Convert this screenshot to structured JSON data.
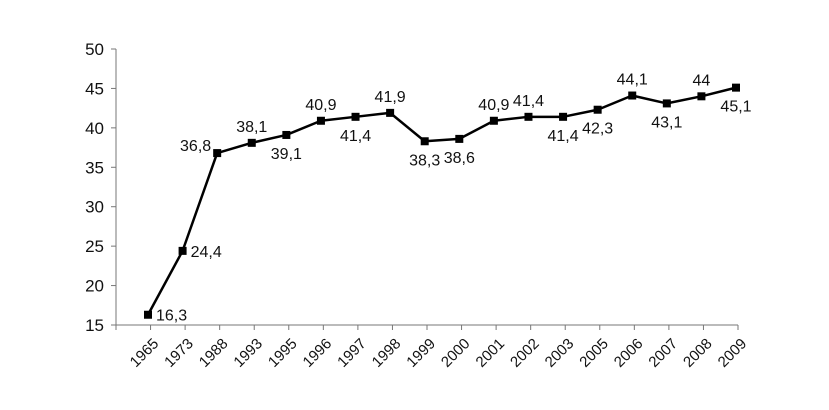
{
  "chart_data": {
    "type": "line",
    "title": "",
    "xlabel": "",
    "ylabel": "",
    "categories": [
      "1965",
      "1973",
      "1988",
      "1993",
      "1995",
      "1996",
      "1997",
      "1998",
      "1999",
      "2000",
      "2001",
      "2002",
      "2003",
      "2005",
      "2006",
      "2007",
      "2008",
      "2009"
    ],
    "series": [
      {
        "values": [
          16.3,
          24.4,
          36.8,
          38.1,
          39.1,
          40.9,
          41.4,
          41.9,
          38.3,
          38.6,
          40.9,
          41.4,
          41.4,
          42.3,
          44.1,
          43.1,
          44,
          45.1
        ],
        "labels": [
          "16,3",
          "24,4",
          "36,8",
          "38,1",
          "39,1",
          "40,9",
          "41,4",
          "41,9",
          "38,3",
          "38,6",
          "40,9",
          "41,4",
          "41,4",
          "42,3",
          "44,1",
          "43,1",
          "44",
          "45,1"
        ]
      }
    ],
    "ylim": [
      15,
      50
    ],
    "yticks": [
      "15",
      "20",
      "25",
      "30",
      "35",
      "40",
      "45",
      "50"
    ],
    "grid": false,
    "legend": "none",
    "colors": {
      "line": "#000000",
      "marker": "#000000",
      "axis": "#777777"
    },
    "marker": "square"
  }
}
